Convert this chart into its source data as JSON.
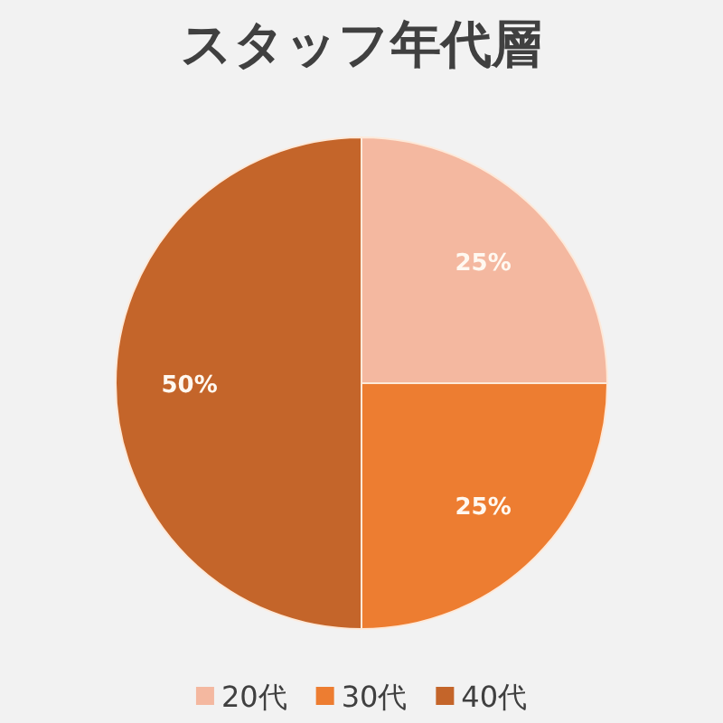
{
  "chart_data": {
    "type": "pie",
    "title": "スタッフ年代層",
    "categories": [
      "20代",
      "30代",
      "40代"
    ],
    "values": [
      25,
      25,
      50
    ],
    "colors": [
      "#f4b8a0",
      "#ed7d31",
      "#c4652a"
    ],
    "value_labels": [
      "25%",
      "25%",
      "50%"
    ],
    "legend": "bottom"
  }
}
